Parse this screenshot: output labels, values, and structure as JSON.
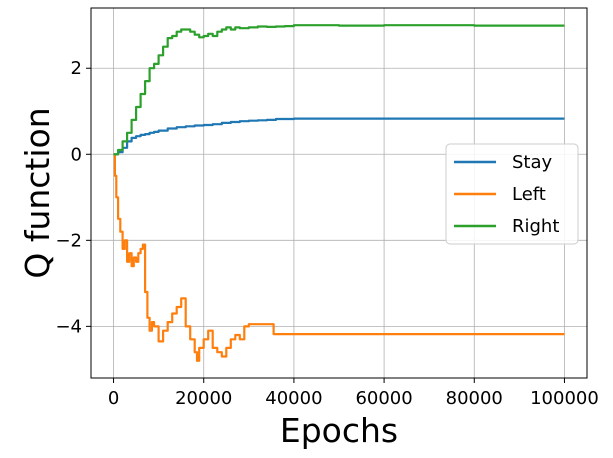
{
  "chart_data": {
    "type": "line",
    "title": "",
    "xlabel": "Epochs",
    "ylabel": "Q function",
    "xlim": [
      -5000,
      105000
    ],
    "ylim": [
      -5.2,
      3.4
    ],
    "xticks": [
      0,
      20000,
      40000,
      60000,
      80000,
      100000
    ],
    "xtick_labels": [
      "0",
      "20000",
      "40000",
      "60000",
      "80000",
      "100000"
    ],
    "yticks": [
      -4,
      -2,
      0,
      2
    ],
    "ytick_labels": [
      "−4",
      "−2",
      "0",
      "2"
    ],
    "grid": true,
    "legend_position": "right",
    "series": [
      {
        "name": "Stay",
        "color": "#1f77b4",
        "points": [
          [
            0,
            0
          ],
          [
            1000,
            0.05
          ],
          [
            2000,
            0.15
          ],
          [
            3000,
            0.3
          ],
          [
            4000,
            0.38
          ],
          [
            5000,
            0.42
          ],
          [
            6000,
            0.45
          ],
          [
            7000,
            0.47
          ],
          [
            8000,
            0.5
          ],
          [
            9000,
            0.52
          ],
          [
            10000,
            0.55
          ],
          [
            12000,
            0.6
          ],
          [
            14000,
            0.63
          ],
          [
            16000,
            0.65
          ],
          [
            18000,
            0.67
          ],
          [
            20000,
            0.68
          ],
          [
            22000,
            0.7
          ],
          [
            24000,
            0.73
          ],
          [
            26000,
            0.75
          ],
          [
            28000,
            0.77
          ],
          [
            30000,
            0.78
          ],
          [
            32000,
            0.79
          ],
          [
            34000,
            0.8
          ],
          [
            36000,
            0.82
          ],
          [
            40000,
            0.83
          ],
          [
            50000,
            0.83
          ],
          [
            60000,
            0.83
          ],
          [
            70000,
            0.83
          ],
          [
            80000,
            0.83
          ],
          [
            90000,
            0.83
          ],
          [
            100000,
            0.83
          ]
        ]
      },
      {
        "name": "Left",
        "color": "#ff7f0e",
        "points": [
          [
            0,
            0
          ],
          [
            300,
            -0.5
          ],
          [
            600,
            -1.0
          ],
          [
            1000,
            -1.5
          ],
          [
            1500,
            -1.8
          ],
          [
            2000,
            -2.2
          ],
          [
            2500,
            -2.0
          ],
          [
            3000,
            -2.5
          ],
          [
            3500,
            -2.3
          ],
          [
            4000,
            -2.6
          ],
          [
            4500,
            -2.4
          ],
          [
            5000,
            -2.5
          ],
          [
            5500,
            -2.3
          ],
          [
            6000,
            -2.2
          ],
          [
            6500,
            -2.1
          ],
          [
            7000,
            -3.2
          ],
          [
            7500,
            -3.8
          ],
          [
            8000,
            -4.1
          ],
          [
            8500,
            -3.9
          ],
          [
            9000,
            -4.0
          ],
          [
            10000,
            -4.35
          ],
          [
            11000,
            -4.1
          ],
          [
            12000,
            -3.9
          ],
          [
            13000,
            -3.7
          ],
          [
            14000,
            -3.55
          ],
          [
            15000,
            -3.35
          ],
          [
            16000,
            -4.0
          ],
          [
            17000,
            -4.3
          ],
          [
            18000,
            -4.6
          ],
          [
            18500,
            -4.8
          ],
          [
            19000,
            -4.5
          ],
          [
            20000,
            -4.3
          ],
          [
            21000,
            -4.1
          ],
          [
            22000,
            -4.5
          ],
          [
            23000,
            -4.6
          ],
          [
            24000,
            -4.7
          ],
          [
            25000,
            -4.5
          ],
          [
            26000,
            -4.3
          ],
          [
            27000,
            -4.2
          ],
          [
            28000,
            -4.3
          ],
          [
            29000,
            -4.0
          ],
          [
            30000,
            -3.95
          ],
          [
            32000,
            -3.95
          ],
          [
            35000,
            -3.95
          ],
          [
            35500,
            -4.18
          ],
          [
            40000,
            -4.18
          ],
          [
            50000,
            -4.18
          ],
          [
            60000,
            -4.18
          ],
          [
            70000,
            -4.18
          ],
          [
            80000,
            -4.18
          ],
          [
            90000,
            -4.18
          ],
          [
            100000,
            -4.18
          ]
        ]
      },
      {
        "name": "Right",
        "color": "#2ca02c",
        "points": [
          [
            0,
            0
          ],
          [
            1000,
            0.1
          ],
          [
            2000,
            0.3
          ],
          [
            3000,
            0.5
          ],
          [
            4000,
            0.8
          ],
          [
            5000,
            1.1
          ],
          [
            6000,
            1.4
          ],
          [
            7000,
            1.7
          ],
          [
            8000,
            2.0
          ],
          [
            9000,
            2.1
          ],
          [
            10000,
            2.3
          ],
          [
            11000,
            2.5
          ],
          [
            12000,
            2.7
          ],
          [
            13000,
            2.75
          ],
          [
            14000,
            2.85
          ],
          [
            15000,
            2.9
          ],
          [
            16000,
            2.9
          ],
          [
            17000,
            2.85
          ],
          [
            18000,
            2.78
          ],
          [
            19000,
            2.72
          ],
          [
            20000,
            2.75
          ],
          [
            21000,
            2.8
          ],
          [
            22000,
            2.75
          ],
          [
            23000,
            2.85
          ],
          [
            24000,
            2.9
          ],
          [
            25000,
            2.95
          ],
          [
            26000,
            2.9
          ],
          [
            27000,
            2.95
          ],
          [
            28000,
            2.93
          ],
          [
            30000,
            2.95
          ],
          [
            32000,
            2.97
          ],
          [
            34000,
            2.96
          ],
          [
            36000,
            2.97
          ],
          [
            38000,
            2.98
          ],
          [
            40000,
            3.0
          ],
          [
            45000,
            3.0
          ],
          [
            50000,
            2.99
          ],
          [
            60000,
            3.0
          ],
          [
            70000,
            3.0
          ],
          [
            80000,
            2.99
          ],
          [
            90000,
            2.99
          ],
          [
            100000,
            2.99
          ]
        ]
      }
    ]
  }
}
